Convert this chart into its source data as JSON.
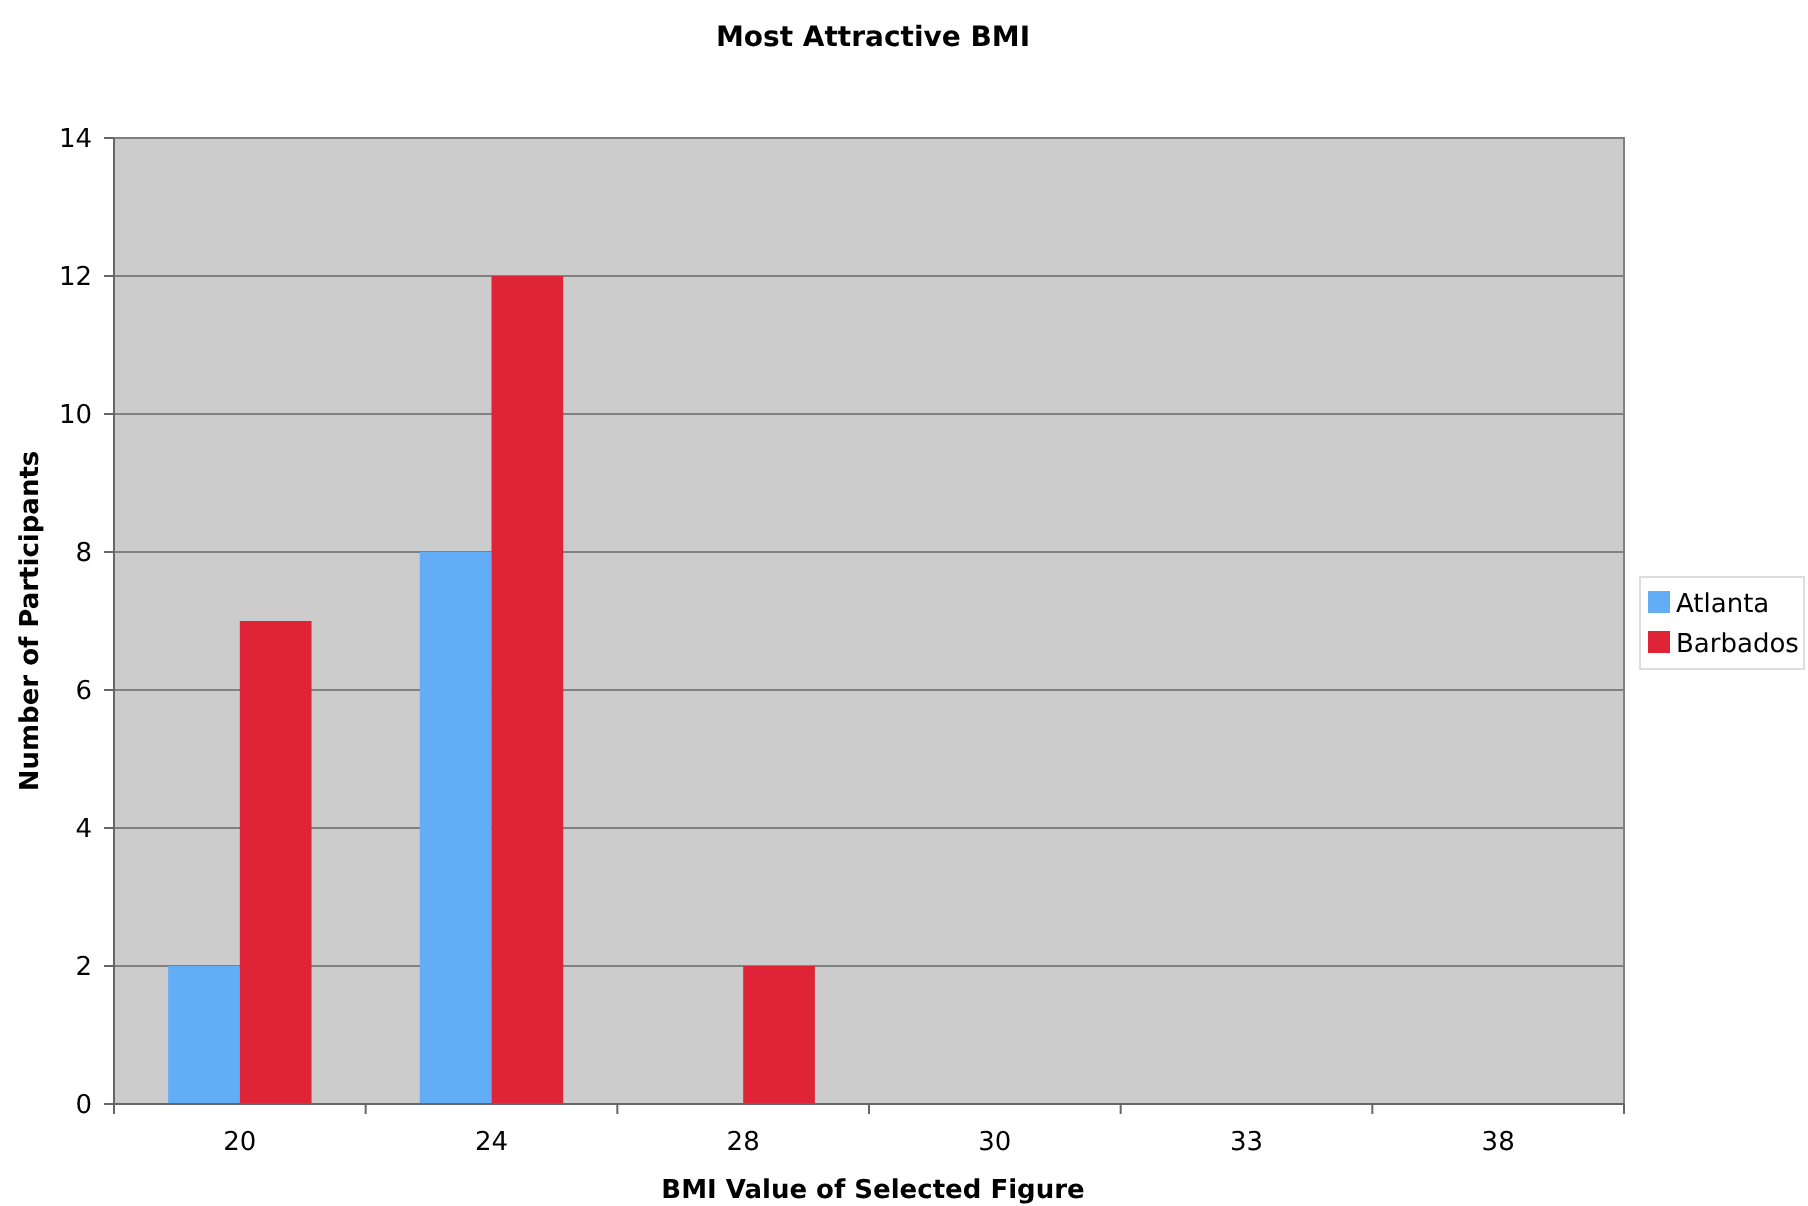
{
  "chart_data": {
    "type": "bar",
    "title": "Most Attractive BMI",
    "xlabel": "BMI Value of Selected Figure",
    "ylabel": "Number of Participants",
    "categories": [
      "20",
      "24",
      "28",
      "30",
      "33",
      "38"
    ],
    "series": [
      {
        "name": "Atlanta",
        "color": "#63adf7",
        "values": [
          2,
          8,
          0,
          0,
          0,
          0
        ]
      },
      {
        "name": "Barbados",
        "color": "#e02437",
        "values": [
          7,
          12,
          2,
          0,
          0,
          0
        ]
      }
    ],
    "ylim": [
      0,
      14
    ],
    "yticks": [
      0,
      2,
      4,
      6,
      8,
      10,
      12,
      14
    ],
    "grid": "y",
    "legend": "right"
  }
}
